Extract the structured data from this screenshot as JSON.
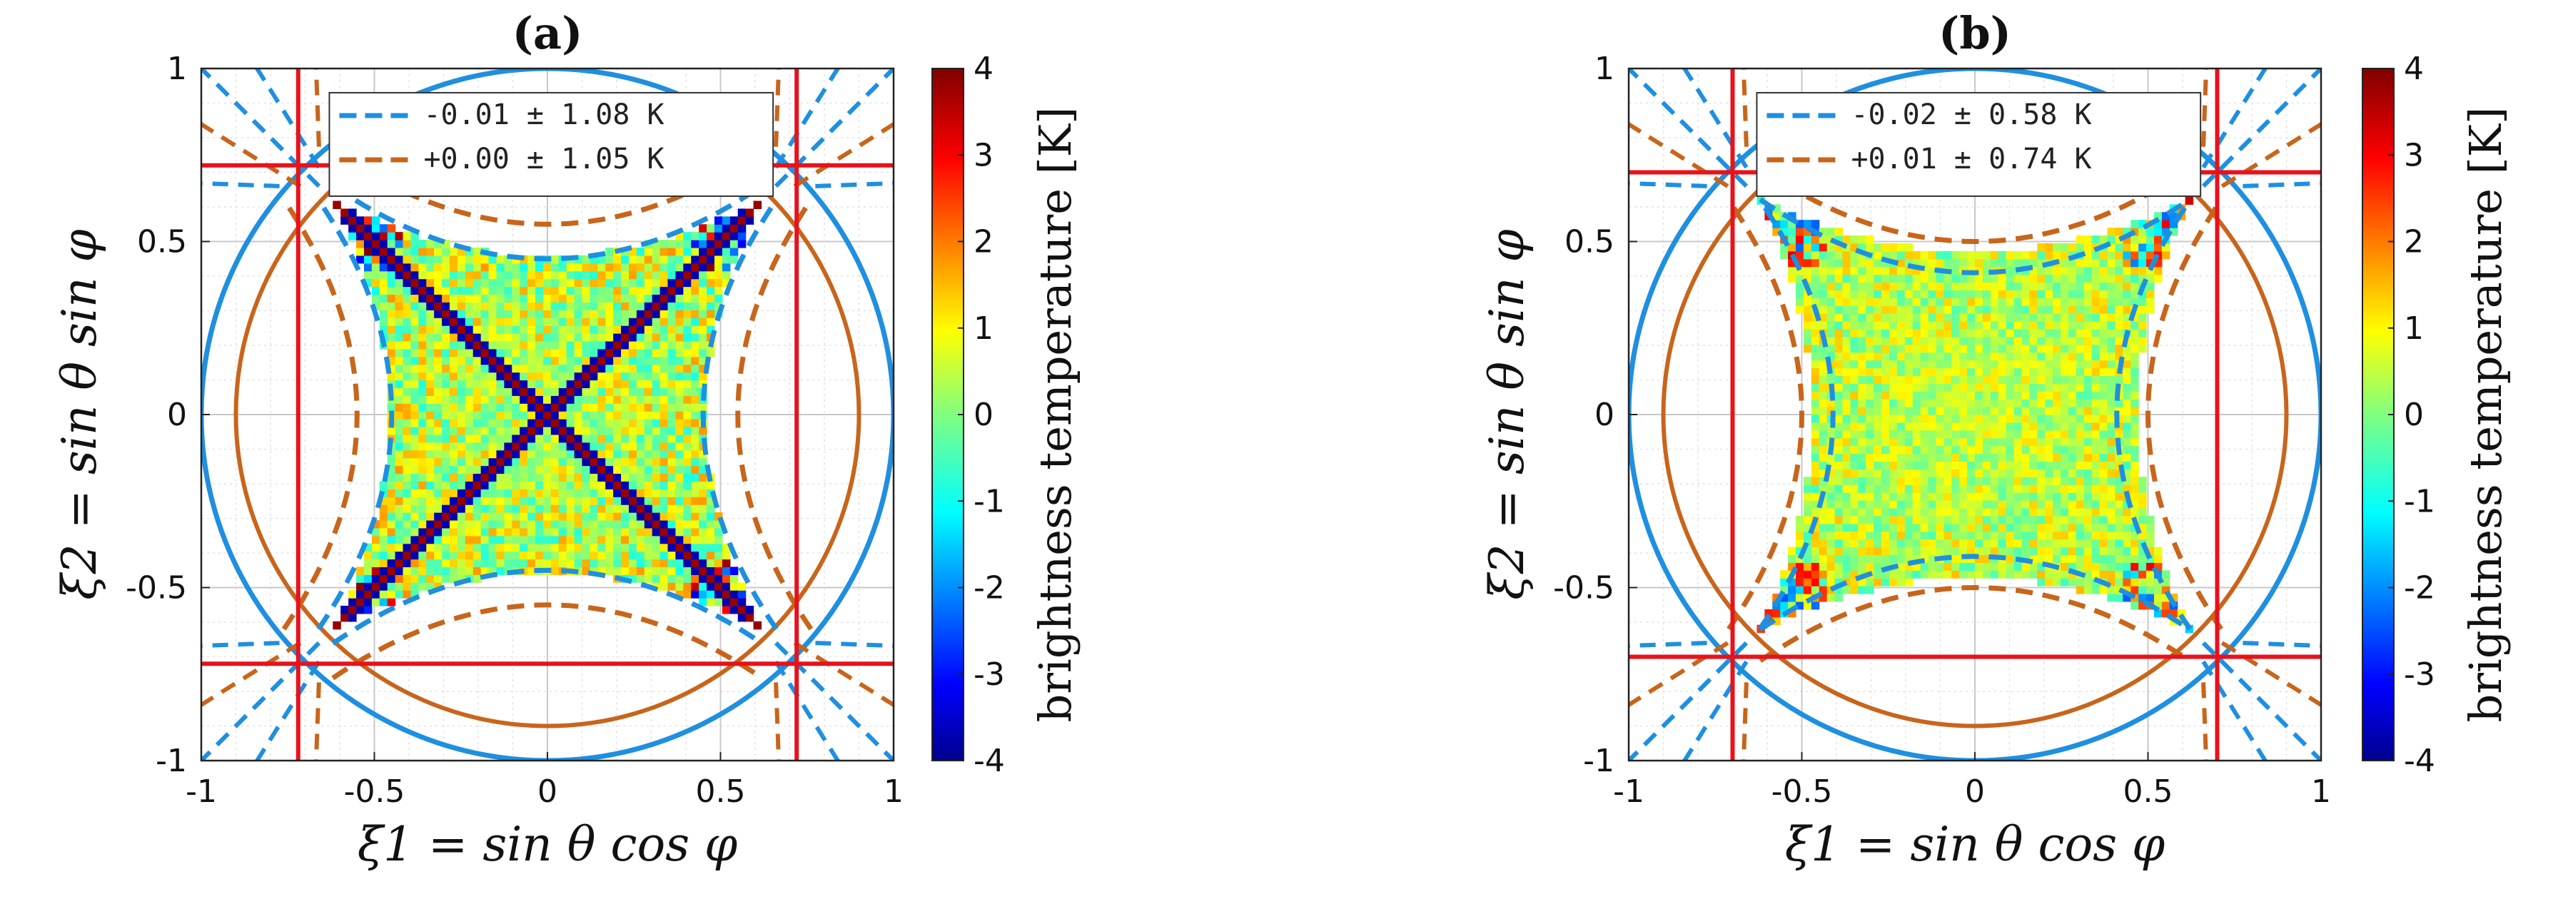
{
  "chart_data": [
    {
      "type": "heatmap",
      "panel_label": "(a)",
      "xlabel": "ξ1 = sin θ cos φ",
      "ylabel": "ξ2 = sin θ sin φ",
      "xlim": [
        -1,
        1
      ],
      "ylim": [
        -1,
        1
      ],
      "xticks": [
        "-1",
        "-0.5",
        "0",
        "0.5",
        "1"
      ],
      "yticks": [
        "-1",
        "-0.5",
        "0",
        "0.5",
        "1"
      ],
      "grid": true,
      "colorbar": {
        "label": "brightness temperature [K]",
        "range": [
          -4,
          4
        ],
        "ticks": [
          "4",
          "3",
          "2",
          "1",
          "0",
          "-1",
          "-2",
          "-3",
          "-4"
        ],
        "colormap": "jet"
      },
      "legend": {
        "placement": "top",
        "entries": [
          {
            "label": "-0.01 ± 1.08 K",
            "color": "#1f8fe0",
            "style": "dashed"
          },
          {
            "label": "+0.00 ± 1.05 K",
            "color": "#c8651b",
            "style": "dashed"
          }
        ]
      },
      "overlays": {
        "blue_circle_radius": 1.0,
        "orange_circle_radius": 0.9,
        "red_lines_at": 0.72,
        "inner_blue_curve_apex": 0.45,
        "inner_orange_curve_apex": 0.55,
        "map_half_extent": 0.62,
        "diagonal_artifacts": true
      }
    },
    {
      "type": "heatmap",
      "panel_label": "(b)",
      "xlabel": "ξ1 = sin θ cos φ",
      "ylabel": "ξ2 = sin θ sin φ",
      "xlim": [
        -1,
        1
      ],
      "ylim": [
        -1,
        1
      ],
      "xticks": [
        "-1",
        "-0.5",
        "0",
        "0.5",
        "1"
      ],
      "yticks": [
        "-1",
        "-0.5",
        "0",
        "0.5",
        "1"
      ],
      "grid": true,
      "colorbar": {
        "label": "brightness temperature [K]",
        "range": [
          -4,
          4
        ],
        "ticks": [
          "4",
          "3",
          "2",
          "1",
          "0",
          "-1",
          "-2",
          "-3",
          "-4"
        ],
        "colormap": "jet"
      },
      "legend": {
        "placement": "top",
        "entries": [
          {
            "label": "-0.02 ± 0.58 K",
            "color": "#1f8fe0",
            "style": "dashed"
          },
          {
            "label": "+0.01 ± 0.74 K",
            "color": "#c8651b",
            "style": "dashed"
          }
        ]
      },
      "overlays": {
        "blue_circle_radius": 1.0,
        "orange_circle_radius": 0.9,
        "red_lines_at": 0.7,
        "inner_blue_curve_apex": 0.41,
        "inner_orange_curve_apex": 0.5,
        "map_half_extent": 0.63,
        "diagonal_artifacts": false
      }
    }
  ]
}
